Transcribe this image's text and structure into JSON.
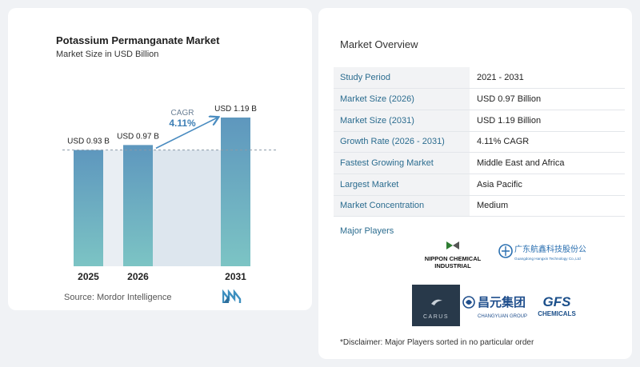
{
  "chart": {
    "title": "Potassium Permanganate Market",
    "subtitle": "Market Size in USD Billion",
    "source": "Source:  Mordor Intelligence",
    "cagr_label": "CAGR",
    "cagr_value": "4.11%"
  },
  "chart_data": {
    "type": "bar",
    "categories": [
      "2025",
      "2026",
      "2031"
    ],
    "values": [
      0.93,
      0.97,
      1.19
    ],
    "data_labels": [
      "USD 0.93 B",
      "USD 0.97 B",
      "USD 1.19 B"
    ],
    "title": "Potassium Permanganate Market",
    "subtitle": "Market Size in USD Billion",
    "xlabel": "",
    "ylabel": "",
    "ylim": [
      0,
      1.19
    ],
    "annotation": "CAGR 4.11%",
    "grid": false,
    "colors": {
      "bar_top": "#5e97be",
      "bar_bottom": "#7cc4c4",
      "band": "#dde6ee",
      "arrow": "#4a8cc0"
    }
  },
  "overview": {
    "title": "Market Overview",
    "rows": [
      {
        "label": "Study Period",
        "value": "2021 - 2031"
      },
      {
        "label": "Market Size (2026)",
        "value": "USD 0.97 Billion"
      },
      {
        "label": "Market Size (2031)",
        "value": "USD 1.19 Billion"
      },
      {
        "label": "Growth Rate (2026 - 2031)",
        "value": "4.11% CAGR"
      },
      {
        "label": "Fastest Growing Market",
        "value": "Middle East and Africa"
      },
      {
        "label": "Largest Market",
        "value": "Asia Pacific"
      },
      {
        "label": "Market Concentration",
        "value": "Medium"
      }
    ]
  },
  "players": {
    "title": "Major Players",
    "nippon_line1": "NIPPON CHEMICAL",
    "nippon_line2": "INDUSTRIAL",
    "guangdong_cn": "广东航鑫科技股份公司",
    "guangdong_en": "Guangdong Hangxin Technology Co.,Ltd",
    "carus": "CARUS",
    "changyuan_cn": "昌元集团",
    "changyuan_en": "CHANGYUAN GROUP",
    "gfs_line1": "GFS",
    "gfs_line2": "CHEMICALS"
  },
  "disclaimer": "*Disclaimer: Major Players sorted in no particular order"
}
